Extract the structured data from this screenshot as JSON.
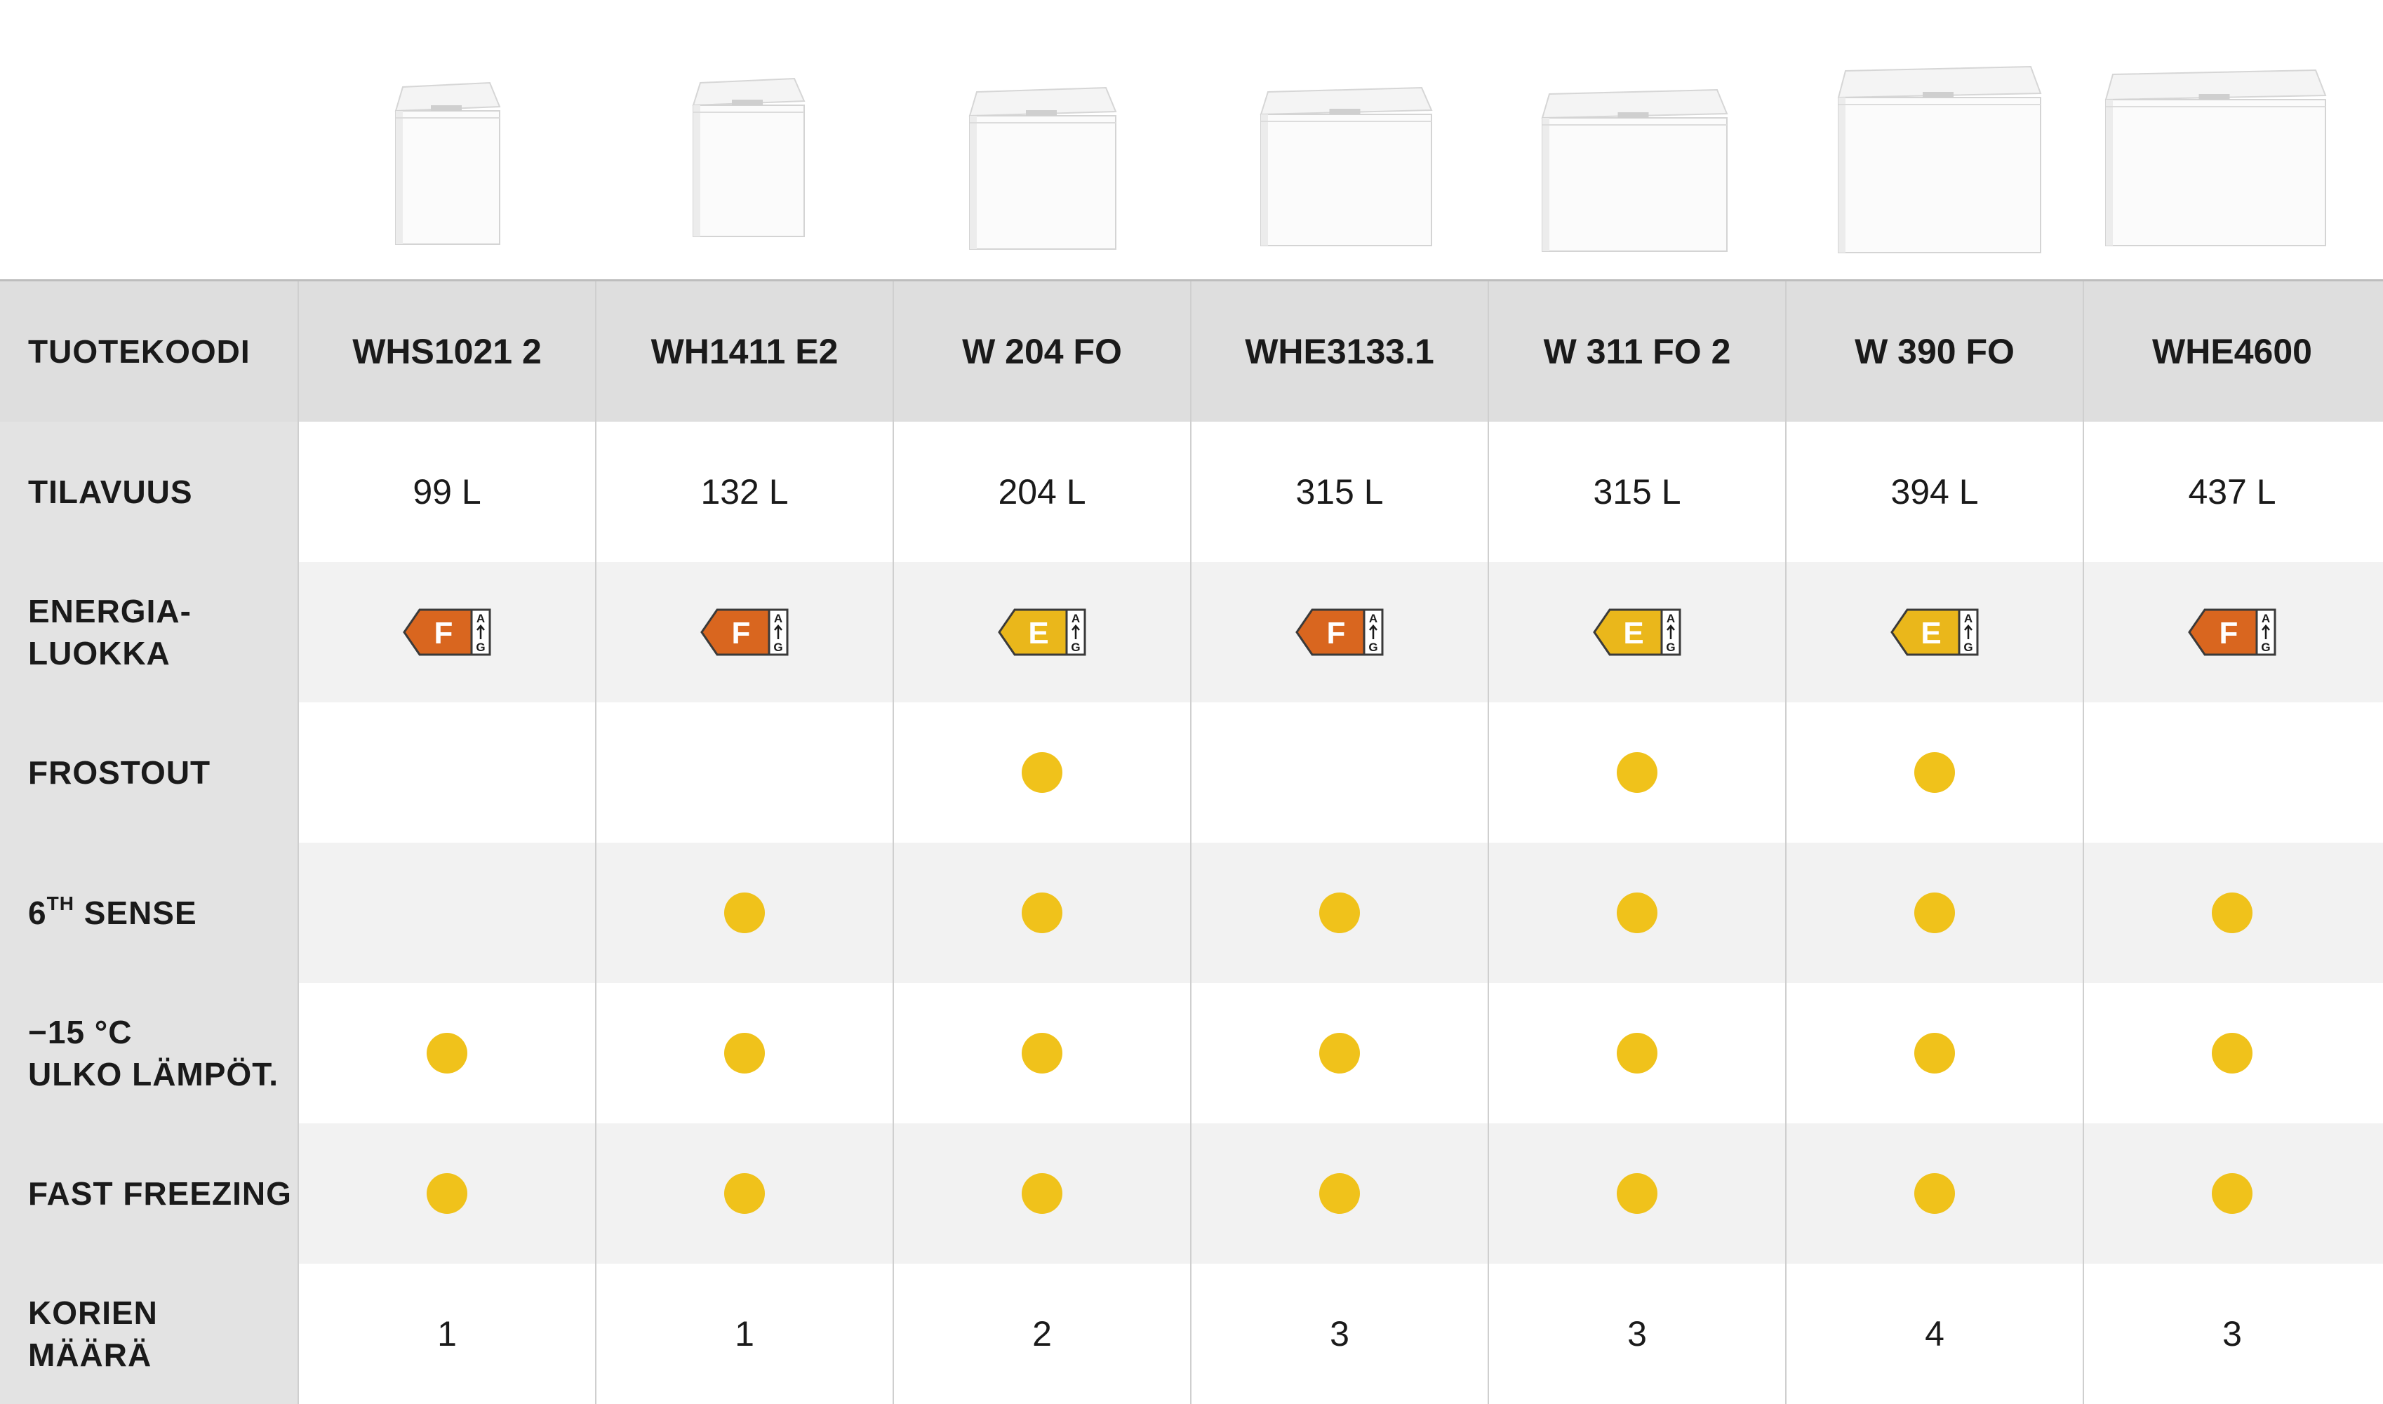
{
  "header_label": "TUOTEKOODI",
  "products": [
    {
      "code": "WHS1021 2",
      "volume": "99 L",
      "energy_class": "F",
      "energy_color": "#d9661f",
      "frostout": false,
      "sixth_sense": false,
      "minus15": true,
      "fast_freezing": true,
      "baskets": "1"
    },
    {
      "code": "WH1411 E2",
      "volume": "132 L",
      "energy_class": "F",
      "energy_color": "#d9661f",
      "frostout": false,
      "sixth_sense": true,
      "minus15": true,
      "fast_freezing": true,
      "baskets": "1"
    },
    {
      "code": "W 204 FO",
      "volume": "204 L",
      "energy_class": "E",
      "energy_color": "#eab71b",
      "frostout": true,
      "sixth_sense": true,
      "minus15": true,
      "fast_freezing": true,
      "baskets": "2"
    },
    {
      "code": "WHE3133.1",
      "volume": "315 L",
      "energy_class": "F",
      "energy_color": "#d9661f",
      "frostout": false,
      "sixth_sense": true,
      "minus15": true,
      "fast_freezing": true,
      "baskets": "3"
    },
    {
      "code": "W 311 FO 2",
      "volume": "315 L",
      "energy_class": "E",
      "energy_color": "#eab71b",
      "frostout": true,
      "sixth_sense": true,
      "minus15": true,
      "fast_freezing": true,
      "baskets": "3"
    },
    {
      "code": "W 390 FO",
      "volume": "394 L",
      "energy_class": "E",
      "energy_color": "#eab71b",
      "frostout": true,
      "sixth_sense": true,
      "minus15": true,
      "fast_freezing": true,
      "baskets": "4"
    },
    {
      "code": "WHE4600",
      "volume": "437 L",
      "energy_class": "F",
      "energy_color": "#d9661f",
      "frostout": false,
      "sixth_sense": true,
      "minus15": true,
      "fast_freezing": true,
      "baskets": "3"
    }
  ],
  "rows": {
    "volume": {
      "label_lines": [
        "TILAVUUS"
      ]
    },
    "energy": {
      "label_lines": [
        "ENERGIA-",
        "LUOKKA"
      ],
      "scale_top": "A",
      "scale_bottom": "G"
    },
    "frostout": {
      "label_lines": [
        "FROSTOUT"
      ]
    },
    "sixth_sense": {
      "label_pre": "6",
      "label_sup": "TH",
      "label_post": " SENSE"
    },
    "minus15": {
      "label_lines": [
        "−15 °C",
        "ULKO LÄMPÖT."
      ]
    },
    "fast_freezing": {
      "label_lines": [
        "FAST FREEZING"
      ]
    },
    "baskets": {
      "label_lines": [
        "KORIEN",
        "MÄÄRÄ"
      ]
    }
  },
  "colors": {
    "dot": "#f0c21b",
    "label_bg": "#e3e3e3",
    "grey_row": "#f2f2f2"
  }
}
